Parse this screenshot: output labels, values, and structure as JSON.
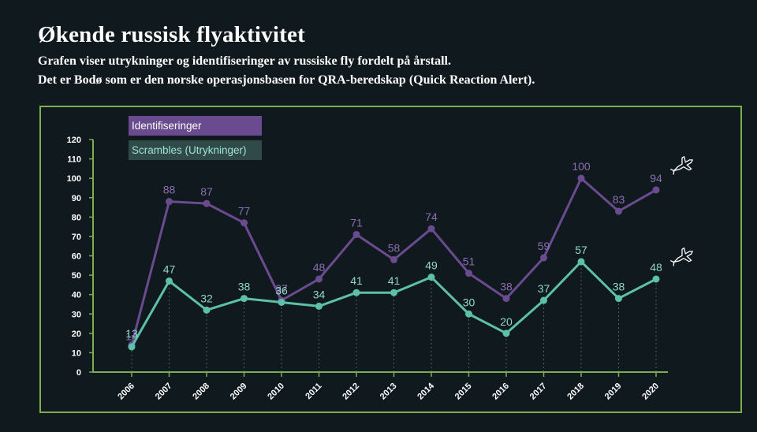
{
  "title": "Økende russisk flyaktivitet",
  "subtitle_line1": "Grafen viser utrykninger og identifiseringer av russiske fly fordelt på årstall.",
  "subtitle_line2": "Det er Bodø som er den norske operasjonsbasen for QRA-beredskap (Quick Reaction Alert).",
  "colors": {
    "background": "#10191d",
    "frame": "#7cae4f",
    "identifiseringer": "#6a4b8f",
    "scrambles": "#5cc1a8"
  },
  "icons": [
    "fighter-jet-icon",
    "fighter-jet-icon"
  ],
  "chart_data": {
    "type": "line",
    "x": [
      "2006",
      "2007",
      "2008",
      "2009",
      "2010",
      "2011",
      "2012",
      "2013",
      "2014",
      "2015",
      "2016",
      "2017",
      "2018",
      "2019",
      "2020"
    ],
    "ylim": [
      0,
      120
    ],
    "yticks": [
      "0",
      "10",
      "20",
      "30",
      "40",
      "50",
      "60",
      "70",
      "80",
      "90",
      "100",
      "110",
      "120"
    ],
    "grid": "vertical dotted lines at each year",
    "legend_position": "top-left",
    "series": [
      {
        "name": "Identifiseringer",
        "values": [
          14,
          88,
          87,
          77,
          37,
          48,
          71,
          58,
          74,
          51,
          38,
          59,
          100,
          83,
          94
        ]
      },
      {
        "name": "Scrambles (Utrykninger)",
        "values": [
          13,
          47,
          32,
          38,
          36,
          34,
          41,
          41,
          49,
          30,
          20,
          37,
          57,
          38,
          48
        ]
      }
    ]
  }
}
